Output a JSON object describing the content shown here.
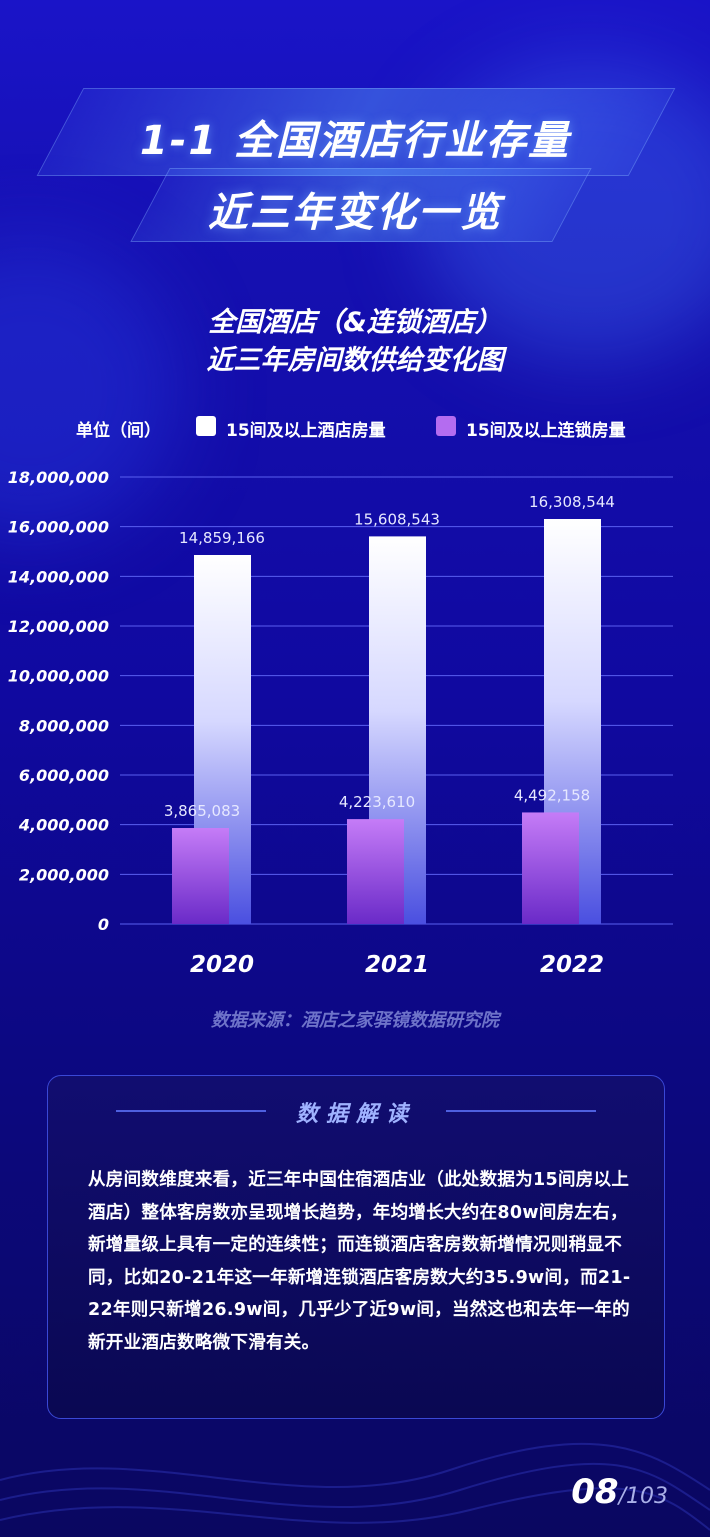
{
  "header": {
    "title_line1": "1-1 全国酒店行业存量",
    "title_line2": "近三年变化一览"
  },
  "chart_heading": {
    "line1": "全国酒店（&连锁酒店）",
    "line2": "近三年房间数供给变化图"
  },
  "legend": {
    "unit_label": "单位（间）",
    "item1": "15间及以上酒店房量",
    "item2": "15间及以上连锁房量"
  },
  "colors": {
    "series1": "#ffffff",
    "series2": "#b46cf0",
    "grid": "#5a5ff0"
  },
  "chart_data": {
    "type": "bar",
    "categories": [
      "2020",
      "2021",
      "2022"
    ],
    "series": [
      {
        "name": "15间及以上酒店房量",
        "values": [
          14859166,
          15608543,
          16308544
        ],
        "labels": [
          "14,859,166",
          "15,608,543",
          "16,308,544"
        ]
      },
      {
        "name": "15间及以上连锁房量",
        "values": [
          3865083,
          4223610,
          4492158
        ],
        "labels": [
          "3,865,083",
          "4,223,610",
          "4,492,158"
        ]
      }
    ],
    "ylim": [
      0,
      18000000
    ],
    "yticks": [
      "0",
      "2,000,000",
      "4,000,000",
      "6,000,000",
      "8,000,000",
      "10,000,000",
      "12,000,000",
      "14,000,000",
      "16,000,000",
      "18,000,000"
    ],
    "ytick_values": [
      0,
      2000000,
      4000000,
      6000000,
      8000000,
      10000000,
      12000000,
      14000000,
      16000000,
      18000000
    ],
    "grid": true,
    "legend_position": "top"
  },
  "source": "数据来源：酒店之家驿镜数据研究院",
  "card": {
    "title": "数据解读",
    "text": "从房间数维度来看，近三年中国住宿酒店业（此处数据为15间房以上酒店）整体客房数亦呈现增长趋势，年均增长大约在80w间房左右，新增量级上具有一定的连续性；而连锁酒店客房数新增情况则稍显不同，比如20-21年这一年新增连锁酒店客房数大约35.9w间，而21-22年则只新增26.9w间，几乎少了近9w间，当然这也和去年一年的新开业酒店数略微下滑有关。"
  },
  "pager": {
    "current": "08",
    "total": "/103"
  }
}
